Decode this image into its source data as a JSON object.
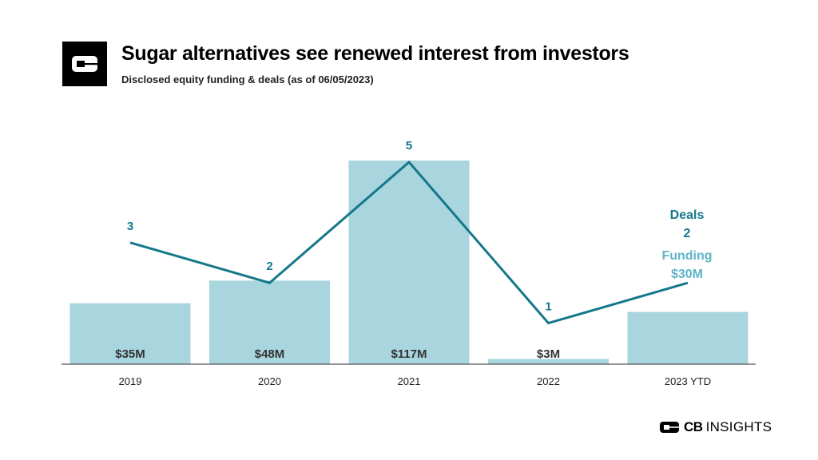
{
  "header": {
    "title": "Sugar alternatives see renewed interest from investors",
    "subtitle": "Disclosed equity funding & deals (as of 06/05/2023)"
  },
  "legend": {
    "deals_label": "Deals",
    "deals_value": "2",
    "funding_label": "Funding",
    "funding_value": "$30M"
  },
  "footer": {
    "brand_cb": "CB",
    "brand_insights": "INSIGHTS"
  },
  "colors": {
    "bar": "#a8d5de",
    "line": "#15788a",
    "legend_deals": "#15788a",
    "legend_funding": "#5fb4c6",
    "bar_label": "#333333",
    "axis": "#555555"
  },
  "chart_data": {
    "type": "bar",
    "categories": [
      "2019",
      "2020",
      "2021",
      "2022",
      "2023 YTD"
    ],
    "series": [
      {
        "name": "Funding",
        "type": "bar",
        "values": [
          35,
          48,
          117,
          3,
          30
        ],
        "labels": [
          "$35M",
          "$48M",
          "$117M",
          "$3M",
          ""
        ]
      },
      {
        "name": "Deals",
        "type": "line",
        "values": [
          3,
          2,
          5,
          1,
          2
        ],
        "labels": [
          "3",
          "2",
          "5",
          "1",
          ""
        ]
      }
    ],
    "title": "Sugar alternatives see renewed interest from investors",
    "subtitle": "Disclosed equity funding & deals (as of 06/05/2023)",
    "xlabel": "",
    "ylabel": ""
  }
}
